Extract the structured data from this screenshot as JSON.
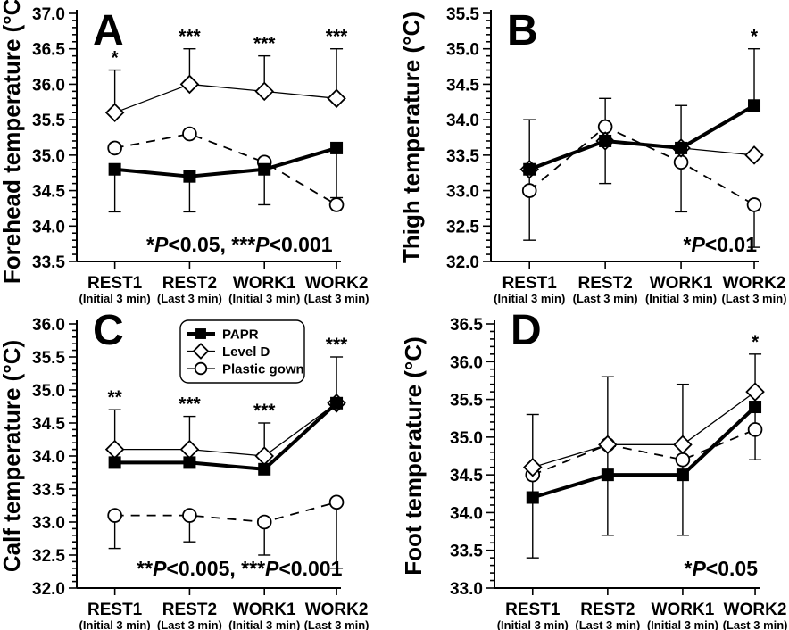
{
  "figure": {
    "background": "#ffffff",
    "ink": "#000000",
    "grid": "off",
    "description": "Four-panel line chart of body temperatures across rest and work phases for three protective-equipment conditions"
  },
  "legend": {
    "panel": "C",
    "position": "top-center-of-panel-C",
    "items": [
      {
        "label": "PAPR"
      },
      {
        "label": "Level D"
      },
      {
        "label": "Plastic gown"
      }
    ]
  },
  "chart_data": [
    {
      "type": "line",
      "panel_letter": "A",
      "ylabel": "Forehead temperature (°C)",
      "ylim": [
        33.5,
        37.0
      ],
      "ytick_step": 0.5,
      "yminor_step": 0.1,
      "ytick_labels": [
        "33.5",
        "34.0",
        "34.5",
        "35.0",
        "35.5",
        "36.0",
        "36.5",
        "37.0"
      ],
      "categories": [
        "REST1",
        "REST2",
        "WORK1",
        "WORK2"
      ],
      "category_sublabels": [
        "(Initial 3 min)",
        "(Last 3 min)",
        "(Initial 3 min)",
        "(Last 3 min)"
      ],
      "series": [
        {
          "name": "PAPR",
          "marker": "square",
          "filled": true,
          "line_style": "solid",
          "line_width": "thick",
          "values": [
            34.8,
            34.7,
            34.8,
            35.1
          ]
        },
        {
          "name": "Level D",
          "marker": "diamond",
          "filled": false,
          "line_style": "solid",
          "line_width": "thin",
          "values": [
            35.6,
            36.0,
            35.9,
            35.8
          ]
        },
        {
          "name": "Plastic gown",
          "marker": "circle",
          "filled": false,
          "line_style": "dashed",
          "line_width": "thin",
          "values": [
            35.1,
            35.3,
            34.9,
            34.3
          ]
        }
      ],
      "error_bars": [
        {
          "category_index": 0,
          "from": 35.6,
          "to": 36.2,
          "cap_bottom": false,
          "cap_top": true
        },
        {
          "category_index": 0,
          "from": 34.2,
          "to": 34.8,
          "cap_bottom": true,
          "cap_top": false
        },
        {
          "category_index": 1,
          "from": 36.0,
          "to": 36.5,
          "cap_bottom": false,
          "cap_top": true
        },
        {
          "category_index": 1,
          "from": 34.2,
          "to": 34.7,
          "cap_bottom": true,
          "cap_top": false
        },
        {
          "category_index": 2,
          "from": 35.9,
          "to": 36.4,
          "cap_bottom": false,
          "cap_top": true
        },
        {
          "category_index": 2,
          "from": 34.3,
          "to": 34.8,
          "cap_bottom": true,
          "cap_top": false
        },
        {
          "category_index": 3,
          "from": 35.8,
          "to": 36.5,
          "cap_bottom": false,
          "cap_top": true
        },
        {
          "category_index": 3,
          "from": 34.4,
          "to": 35.1,
          "cap_bottom": true,
          "cap_top": false
        }
      ],
      "significance_marks": [
        {
          "category_index": 0,
          "text": "*",
          "above_value": 36.2
        },
        {
          "category_index": 1,
          "text": "***",
          "above_value": 36.5
        },
        {
          "category_index": 2,
          "text": "***",
          "above_value": 36.4
        },
        {
          "category_index": 3,
          "text": "***",
          "above_value": 36.5
        }
      ],
      "annotation": {
        "text": "*P<0.05, ***P<0.001",
        "align": "center"
      }
    },
    {
      "type": "line",
      "panel_letter": "B",
      "ylabel": "Thigh temperature (°C)",
      "ylim": [
        32.0,
        35.5
      ],
      "ytick_step": 0.5,
      "yminor_step": 0.1,
      "ytick_labels": [
        "32.0",
        "32.5",
        "33.0",
        "33.5",
        "34.0",
        "34.5",
        "35.0",
        "35.5"
      ],
      "categories": [
        "REST1",
        "REST2",
        "WORK1",
        "WORK2"
      ],
      "category_sublabels": [
        "(Initial 3 min)",
        "(Last 3 min)",
        "(Initial 3 min)",
        "(Last 3 min)"
      ],
      "series": [
        {
          "name": "PAPR",
          "marker": "square",
          "filled": true,
          "line_style": "solid",
          "line_width": "thick",
          "values": [
            33.3,
            33.7,
            33.6,
            34.2
          ]
        },
        {
          "name": "Level D",
          "marker": "diamond",
          "filled": false,
          "line_style": "solid",
          "line_width": "thin",
          "values": [
            33.3,
            33.7,
            33.6,
            33.5
          ]
        },
        {
          "name": "Plastic gown",
          "marker": "circle",
          "filled": false,
          "line_style": "dashed",
          "line_width": "thin",
          "values": [
            33.0,
            33.9,
            33.4,
            32.8
          ]
        }
      ],
      "error_bars": [
        {
          "category_index": 0,
          "from": 32.3,
          "to": 34.0,
          "cap_bottom": true,
          "cap_top": true
        },
        {
          "category_index": 1,
          "from": 33.1,
          "to": 34.3,
          "cap_bottom": true,
          "cap_top": true
        },
        {
          "category_index": 2,
          "from": 32.7,
          "to": 34.2,
          "cap_bottom": true,
          "cap_top": true
        },
        {
          "category_index": 3,
          "from": 34.2,
          "to": 35.0,
          "cap_bottom": false,
          "cap_top": true
        },
        {
          "category_index": 3,
          "from": 32.2,
          "to": 32.8,
          "cap_bottom": true,
          "cap_top": false
        }
      ],
      "significance_marks": [
        {
          "category_index": 3,
          "text": "*",
          "above_value": 35.0
        }
      ],
      "annotation": {
        "text": "*P<0.01",
        "align": "right"
      }
    },
    {
      "type": "line",
      "panel_letter": "C",
      "ylabel": "Calf temperature (°C)",
      "ylim": [
        32.0,
        36.0
      ],
      "ytick_step": 0.5,
      "yminor_step": 0.1,
      "ytick_labels": [
        "32.0",
        "32.5",
        "33.0",
        "33.5",
        "34.0",
        "34.5",
        "35.0",
        "35.5",
        "36.0"
      ],
      "categories": [
        "REST1",
        "REST2",
        "WORK1",
        "WORK2"
      ],
      "category_sublabels": [
        "(Initial 3 min)",
        "(Last 3 min)",
        "(Initial 3 min)",
        "(Last 3 min)"
      ],
      "series": [
        {
          "name": "PAPR",
          "marker": "square",
          "filled": true,
          "line_style": "solid",
          "line_width": "thick",
          "values": [
            33.9,
            33.9,
            33.8,
            34.8
          ]
        },
        {
          "name": "Level D",
          "marker": "diamond",
          "filled": false,
          "line_style": "solid",
          "line_width": "thin",
          "values": [
            34.1,
            34.1,
            34.0,
            34.8
          ]
        },
        {
          "name": "Plastic gown",
          "marker": "circle",
          "filled": false,
          "line_style": "dashed",
          "line_width": "thin",
          "values": [
            33.1,
            33.1,
            33.0,
            33.3
          ]
        }
      ],
      "error_bars": [
        {
          "category_index": 0,
          "from": 34.1,
          "to": 34.7,
          "cap_bottom": false,
          "cap_top": true
        },
        {
          "category_index": 1,
          "from": 34.1,
          "to": 34.6,
          "cap_bottom": false,
          "cap_top": true
        },
        {
          "category_index": 2,
          "from": 34.0,
          "to": 34.5,
          "cap_bottom": false,
          "cap_top": true
        },
        {
          "category_index": 3,
          "from": 34.8,
          "to": 35.5,
          "cap_bottom": false,
          "cap_top": true
        },
        {
          "category_index": 0,
          "from": 32.6,
          "to": 33.1,
          "cap_bottom": true,
          "cap_top": false
        },
        {
          "category_index": 1,
          "from": 32.7,
          "to": 33.1,
          "cap_bottom": true,
          "cap_top": false
        },
        {
          "category_index": 2,
          "from": 32.5,
          "to": 33.0,
          "cap_bottom": true,
          "cap_top": false
        },
        {
          "category_index": 3,
          "from": 32.3,
          "to": 33.3,
          "cap_bottom": true,
          "cap_top": false
        }
      ],
      "significance_marks": [
        {
          "category_index": 0,
          "text": "**",
          "above_value": 34.7
        },
        {
          "category_index": 1,
          "text": "***",
          "above_value": 34.6
        },
        {
          "category_index": 2,
          "text": "***",
          "above_value": 34.5
        },
        {
          "category_index": 3,
          "text": "***",
          "above_value": 35.5
        }
      ],
      "annotation": {
        "text": "**P<0.005, ***P<0.001",
        "align": "center"
      }
    },
    {
      "type": "line",
      "panel_letter": "D",
      "ylabel": "Foot temperature (°C)",
      "ylim": [
        33.0,
        36.5
      ],
      "ytick_step": 0.5,
      "yminor_step": 0.1,
      "ytick_labels": [
        "33.0",
        "33.5",
        "34.0",
        "34.5",
        "35.0",
        "35.5",
        "36.0",
        "36.5"
      ],
      "categories": [
        "REST1",
        "REST2",
        "WORK1",
        "WORK2"
      ],
      "category_sublabels": [
        "(Initial 3 min)",
        "(Last 3 min)",
        "(Initial 3 min)",
        "(Last 3 min)"
      ],
      "series": [
        {
          "name": "PAPR",
          "marker": "square",
          "filled": true,
          "line_style": "solid",
          "line_width": "thick",
          "values": [
            34.2,
            34.5,
            34.5,
            35.4
          ]
        },
        {
          "name": "Level D",
          "marker": "diamond",
          "filled": false,
          "line_style": "solid",
          "line_width": "thin",
          "values": [
            34.6,
            34.9,
            34.9,
            35.6
          ]
        },
        {
          "name": "Plastic gown",
          "marker": "circle",
          "filled": false,
          "line_style": "dashed",
          "line_width": "thin",
          "values": [
            34.5,
            34.9,
            34.7,
            35.1
          ]
        }
      ],
      "error_bars": [
        {
          "category_index": 0,
          "from": 33.4,
          "to": 35.3,
          "cap_bottom": true,
          "cap_top": true
        },
        {
          "category_index": 1,
          "from": 33.7,
          "to": 35.8,
          "cap_bottom": true,
          "cap_top": true
        },
        {
          "category_index": 2,
          "from": 33.7,
          "to": 35.7,
          "cap_bottom": true,
          "cap_top": true
        },
        {
          "category_index": 3,
          "from": 34.7,
          "to": 36.1,
          "cap_bottom": true,
          "cap_top": true
        }
      ],
      "significance_marks": [
        {
          "category_index": 3,
          "text": "*",
          "above_value": 36.1
        }
      ],
      "annotation": {
        "text": "*P<0.05",
        "align": "right"
      }
    }
  ]
}
